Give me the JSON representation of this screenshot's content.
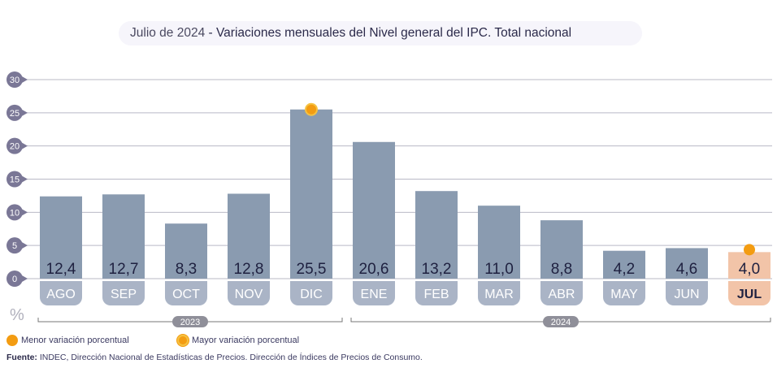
{
  "title": {
    "date": "Julio de 2024",
    "text": " - Variaciones mensuales del Nivel general del IPC. Total nacional"
  },
  "chart_data": {
    "type": "bar",
    "title": "Julio de 2024 - Variaciones mensuales del Nivel general del IPC. Total nacional",
    "categories": [
      "AGO",
      "SEP",
      "OCT",
      "NOV",
      "DIC",
      "ENE",
      "FEB",
      "MAR",
      "ABR",
      "MAY",
      "JUN",
      "JUL"
    ],
    "values": [
      12.4,
      12.7,
      8.3,
      12.8,
      25.5,
      20.6,
      13.2,
      11.0,
      8.8,
      4.2,
      4.6,
      4.0
    ],
    "value_labels": [
      "12,4",
      "12,7",
      "8,3",
      "12,8",
      "25,5",
      "20,6",
      "13,2",
      "11,0",
      "8,8",
      "4,2",
      "4,6",
      "4,0"
    ],
    "yticks": [
      "0",
      "5",
      "10",
      "15",
      "20",
      "25",
      "30"
    ],
    "ylim": [
      0,
      30
    ],
    "ylabel": "%",
    "groups": [
      {
        "label": "2023",
        "from": 0,
        "to": 4
      },
      {
        "label": "2024",
        "from": 5,
        "to": 11
      }
    ],
    "highlight_max_index": 4,
    "highlight_min_index": 11,
    "colors": {
      "bar": "#8a9bb0",
      "label_pill": "#aab4c6",
      "highlight": "#f2c4a8",
      "marker": "#f39c12",
      "axis_badge": "#7a7796"
    }
  },
  "legend": {
    "min": "Menor variación porcentual",
    "max": "Mayor variación porcentual"
  },
  "source": {
    "label": "Fuente:",
    "text": " INDEC, Dirección Nacional de Estadísticas de Precios. Dirección de Índices de Precios de Consumo."
  }
}
